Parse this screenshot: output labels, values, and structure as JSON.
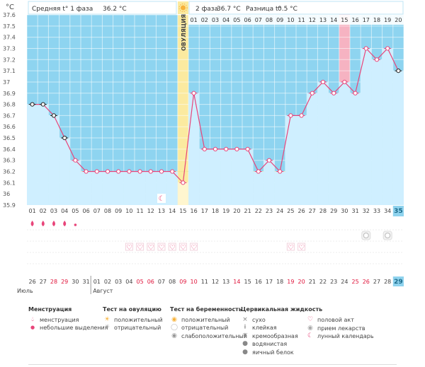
{
  "header": {
    "y_unit": "°C",
    "phase1_label": "Средняя t° 1 фаза",
    "phase1_value": "36.2 °C",
    "phase2_label": "2 фаза",
    "phase2_value": "36.7 °C",
    "diff_label": "Разница t°",
    "diff_value": "0.5 °C",
    "ovulation_label": "ОВУЛЯЦИЯ"
  },
  "chart_data": {
    "type": "line",
    "x": [
      1,
      2,
      3,
      4,
      5,
      6,
      7,
      8,
      9,
      10,
      11,
      12,
      13,
      14,
      15,
      16,
      17,
      18,
      19,
      20,
      21,
      22,
      23,
      24,
      25,
      26,
      27,
      28,
      29,
      30,
      31,
      32,
      33,
      34,
      35
    ],
    "series": [
      {
        "values": [
          36.8,
          36.8,
          36.7,
          36.5,
          36.3,
          36.2,
          36.2,
          36.2,
          36.2,
          36.2,
          36.2,
          36.2,
          36.2,
          36.2,
          36.1,
          36.9,
          36.4,
          36.4,
          36.4,
          36.4,
          36.4,
          36.2,
          36.3,
          36.2,
          36.7,
          36.7,
          36.9,
          37.0,
          36.9,
          37.0,
          36.9,
          37.3,
          37.2,
          37.3,
          37.1
        ]
      }
    ],
    "ylim": [
      35.9,
      37.6
    ],
    "yticks": [
      "35.9",
      "36",
      "36.1",
      "36.2",
      "36.3",
      "36.4",
      "36.5",
      "36.6",
      "36.7",
      "36.8",
      "36.9",
      "37",
      "37.1",
      "37.2",
      "37.3",
      "37.4",
      "37.5",
      "37.6"
    ],
    "coverline": 36.2,
    "ovulation_day": 15,
    "highlight_day": 30,
    "current_day": 35,
    "marker_black_days": [
      1,
      2,
      3,
      4,
      35
    ],
    "top_day_labels": [
      "01",
      "02",
      "03",
      "04",
      "05",
      "06",
      "07",
      "08",
      "09",
      "10",
      "11",
      "12",
      "13",
      "14",
      "15",
      "16",
      "17",
      "18",
      "19",
      "20"
    ],
    "cycle_day_labels": [
      "01",
      "02",
      "03",
      "04",
      "05",
      "06",
      "07",
      "08",
      "09",
      "10",
      "11",
      "12",
      "13",
      "14",
      "15",
      "16",
      "17",
      "18",
      "19",
      "20",
      "21",
      "22",
      "23",
      "24",
      "25",
      "26",
      "27",
      "28",
      "29",
      "30",
      "31",
      "32",
      "33",
      "34",
      "35"
    ],
    "date_labels": [
      "26",
      "27",
      "28",
      "29",
      "30",
      "31",
      "01",
      "02",
      "03",
      "04",
      "05",
      "06",
      "07",
      "08",
      "09",
      "10",
      "11",
      "12",
      "13",
      "14",
      "15",
      "16",
      "17",
      "18",
      "19",
      "20",
      "21",
      "22",
      "23",
      "24",
      "25",
      "26",
      "27",
      "28",
      "29"
    ],
    "red_date_days": [
      3,
      4,
      11,
      12,
      15,
      16,
      20,
      25,
      26,
      31,
      32
    ],
    "month_labels": [
      {
        "label": "Июль",
        "day": 1
      },
      {
        "label": "Август",
        "day": 7
      }
    ],
    "menstruation_days": [
      1,
      2,
      3,
      4
    ],
    "spotting_days": [
      5
    ],
    "intercourse_days": [
      10,
      11,
      12,
      13,
      14,
      15,
      16,
      25,
      26
    ],
    "medication_days": [
      32,
      34
    ],
    "lunar_days": [
      13
    ],
    "colors": {
      "phase1_bg": "#8ed4f0",
      "phase2_bg": "#8ed4f0",
      "fill": "#cfefff",
      "line": "#e8457a",
      "ovulation": "#fbeaa0",
      "highlight": "#f6b3c2",
      "current": "#8fd3ee"
    }
  },
  "legend": {
    "menstruation": {
      "title": "Менструация",
      "items": [
        {
          "icon": "drop-icon",
          "label": "менструация"
        },
        {
          "icon": "small-drop-icon",
          "label": "небольшие выделения"
        }
      ]
    },
    "ovulation_test": {
      "title": "Тест на овуляцию",
      "items": [
        {
          "icon": "sun-icon",
          "label": "положительный"
        },
        {
          "icon": "grey-sun-icon",
          "label": "отрицательный"
        }
      ]
    },
    "pregnancy_test": {
      "title": "Тест на беременность",
      "items": [
        {
          "icon": "positive-test-icon",
          "label": "положительный"
        },
        {
          "icon": "negative-test-icon",
          "label": "отрицательный"
        },
        {
          "icon": "weak-test-icon",
          "label": "слабоположительный"
        }
      ]
    },
    "cervical": {
      "title": "Цервикальная жидкость",
      "items": [
        {
          "icon": "x-icon",
          "label": "сухо"
        },
        {
          "icon": "sticky-icon",
          "label": "клейкая"
        },
        {
          "icon": "creamy-icon",
          "label": "кремообразная"
        },
        {
          "icon": "watery-icon",
          "label": "водянистая"
        },
        {
          "icon": "eggwhite-icon",
          "label": "яичный белок"
        }
      ]
    },
    "other": {
      "items": [
        {
          "icon": "heart-icon",
          "label": "половой акт"
        },
        {
          "icon": "pill-icon",
          "label": "прием лекарств"
        },
        {
          "icon": "moon-icon",
          "label": "лунный календарь"
        }
      ]
    }
  }
}
